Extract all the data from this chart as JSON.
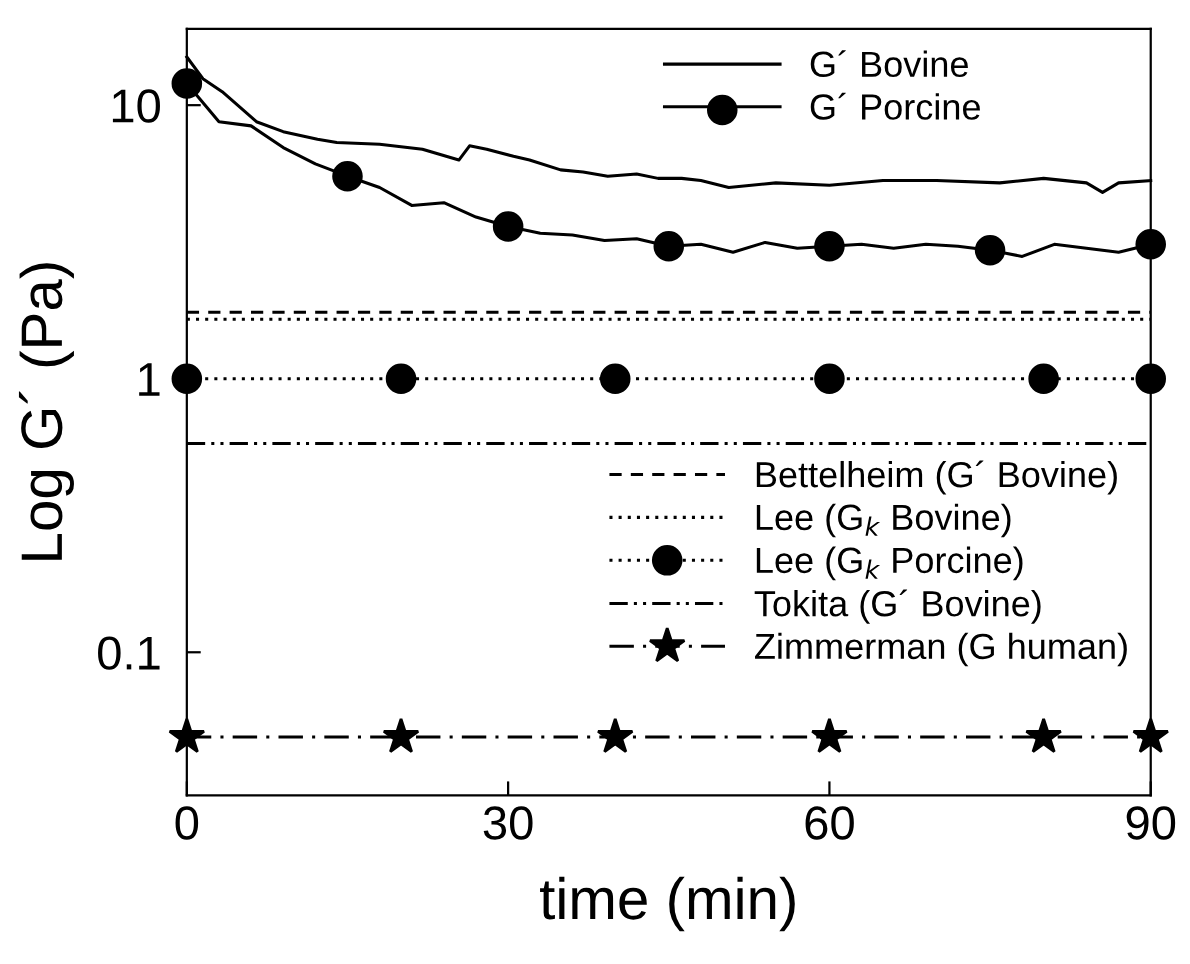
{
  "chart_data": {
    "type": "line",
    "xlabel": "time (min)",
    "ylabel": "Log G´ (Pa)",
    "log": "y",
    "xlim": [
      0,
      90
    ],
    "xticks": [
      0,
      30,
      60,
      90
    ],
    "ylim": [
      0.03,
      19
    ],
    "yticks": [
      0.1,
      1,
      10
    ],
    "legend": "right",
    "grid": false,
    "series": [
      {
        "name": "G´ Bovine",
        "color": "#000000",
        "line_style": "solid",
        "marker": "none",
        "x": [
          0,
          1.5,
          3.3,
          6.5,
          9,
          12.2,
          14,
          18,
          22,
          25.4,
          26.4,
          28,
          30.5,
          32,
          34.9,
          37,
          39.3,
          42,
          44,
          46.2,
          48,
          50.6,
          55,
          60,
          65,
          70,
          75.9,
          80,
          84,
          85.5,
          87,
          90
        ],
        "values": [
          15,
          12.5,
          11.2,
          8.7,
          8.0,
          7.5,
          7.3,
          7.2,
          6.9,
          6.3,
          7.1,
          6.9,
          6.5,
          6.3,
          5.8,
          5.7,
          5.5,
          5.6,
          5.4,
          5.4,
          5.3,
          5.0,
          5.2,
          5.1,
          5.3,
          5.3,
          5.2,
          5.4,
          5.2,
          4.8,
          5.2,
          5.3
        ]
      },
      {
        "name": "G´ Porcine",
        "color": "#000000",
        "line_style": "solid",
        "marker": "none",
        "x": [
          0,
          3,
          6,
          9,
          12,
          15,
          18,
          21,
          24,
          27,
          30,
          33,
          36,
          39,
          42,
          45,
          48,
          51,
          54,
          57,
          60,
          63,
          66,
          69,
          72,
          75,
          78,
          81,
          84,
          87,
          90
        ],
        "values": [
          12,
          8.7,
          8.4,
          7.0,
          6.1,
          5.5,
          5.0,
          4.3,
          4.4,
          3.9,
          3.6,
          3.4,
          3.35,
          3.2,
          3.25,
          3.05,
          3.1,
          2.9,
          3.15,
          3.0,
          3.05,
          3.1,
          3.0,
          3.1,
          3.05,
          2.95,
          2.8,
          3.1,
          3.0,
          2.9,
          3.1
        ]
      },
      {
        "type": "scatter",
        "color": "#000000",
        "marker": "circle",
        "x": [
          0,
          15,
          30,
          45,
          60,
          75,
          90
        ],
        "values": [
          12,
          5.5,
          3.6,
          3.05,
          3.05,
          2.95,
          3.1
        ]
      },
      {
        "name": "Bettelheim (G´ Bovine)",
        "color": "#000000",
        "line_style": "dashed",
        "marker": "none",
        "x": [
          0,
          90
        ],
        "values": [
          1.75,
          1.75
        ]
      },
      {
        "name": "Lee (G$_{k}$ Bovine)",
        "color": "#000000",
        "line_style": "dotted",
        "marker": "none",
        "x": [
          0,
          90
        ],
        "values": [
          1.65,
          1.65
        ]
      },
      {
        "name": "Lee (G$_{k}$ Porcine)",
        "color": "#000000",
        "line_style": "dotted",
        "marker": "circle",
        "x": [
          0,
          20,
          40,
          60,
          80,
          90
        ],
        "values": [
          1,
          1,
          1,
          1,
          1,
          1
        ]
      },
      {
        "name": "Tokita (G´ Bovine)",
        "color": "#000000",
        "line_style": "dashdotdot",
        "marker": "none",
        "x": [
          0,
          90
        ],
        "values": [
          0.58,
          0.58
        ]
      },
      {
        "name": "Zimmerman (G human)",
        "color": "#000000",
        "line_style": "dashdot",
        "marker": "star",
        "x": [
          0,
          20,
          40,
          60,
          80,
          90
        ],
        "values": [
          0.049,
          0.049,
          0.049,
          0.049,
          0.049,
          0.049
        ]
      }
    ]
  }
}
